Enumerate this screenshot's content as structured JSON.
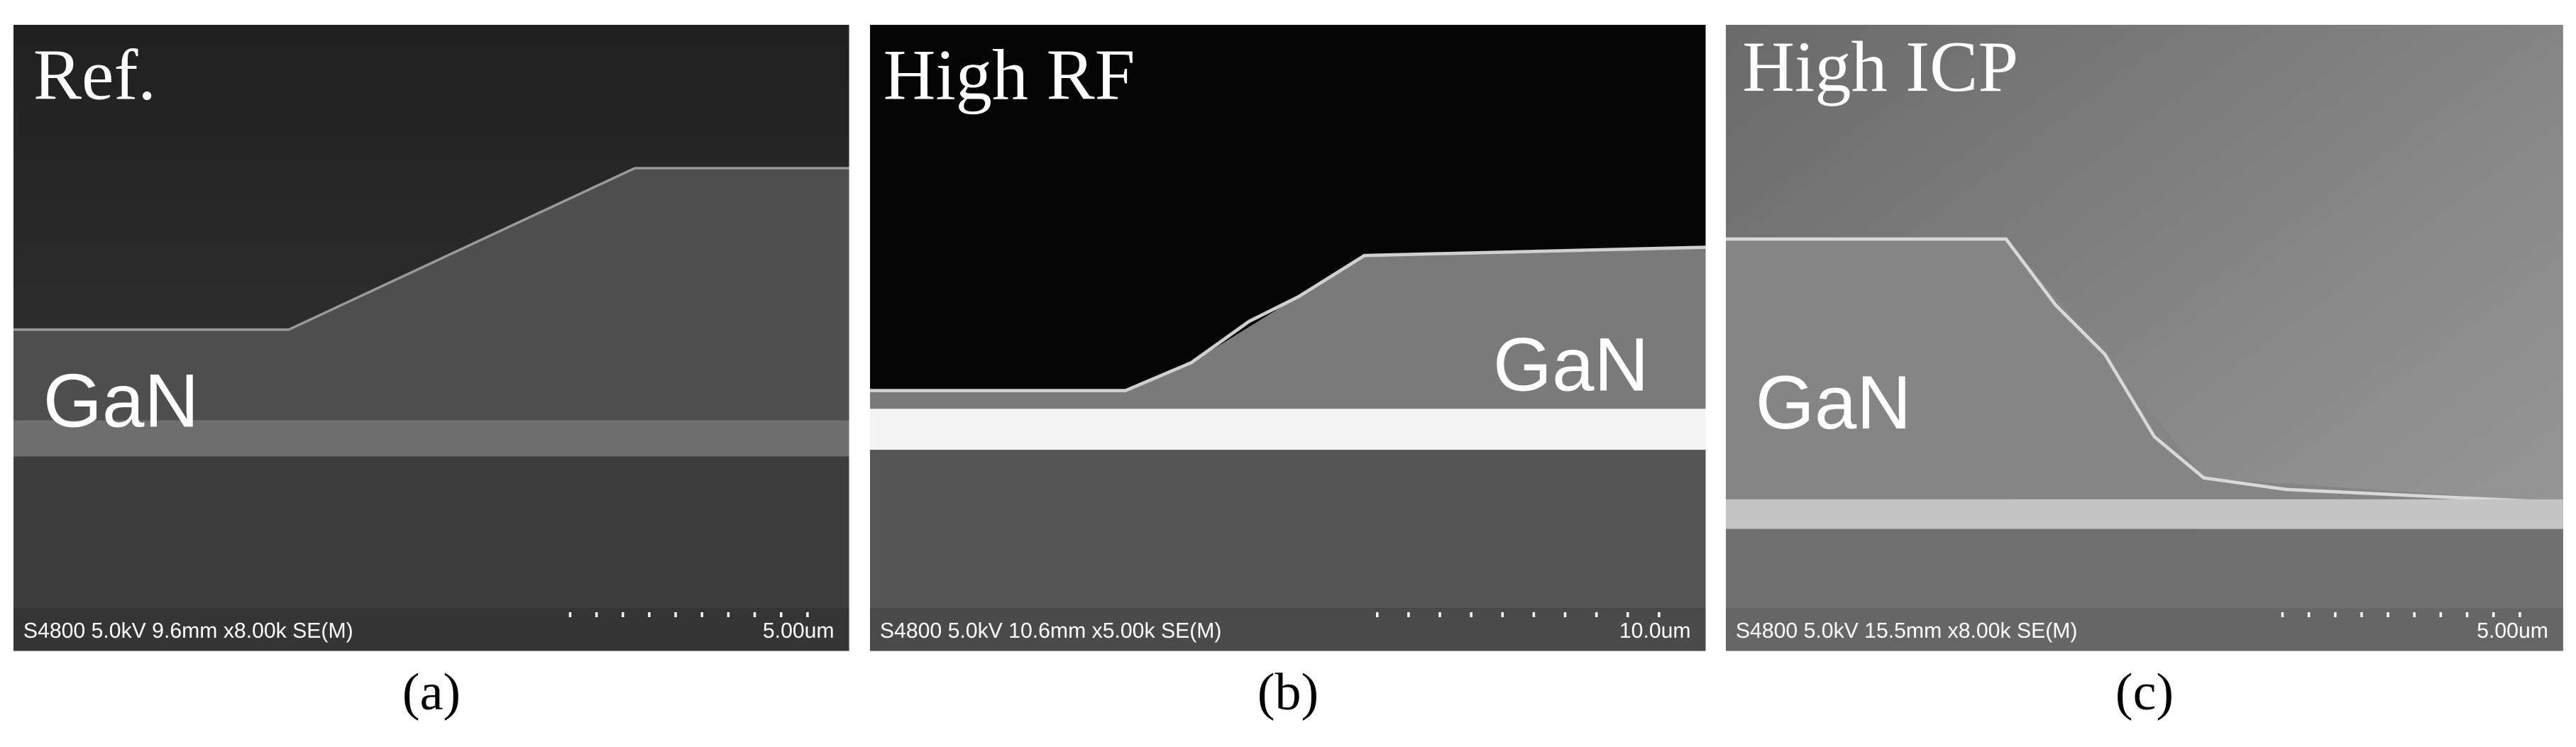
{
  "panels": [
    {
      "label": "Ref.",
      "material": "GaN",
      "info": "S4800 5.0kV 9.6mm x8.00k SE(M)",
      "scale": "5.00um",
      "caption": "(a)"
    },
    {
      "label": "High RF",
      "material": "GaN",
      "info": "S4800 5.0kV 10.6mm x5.00k SE(M)",
      "scale": "10.0um",
      "caption": "(b)"
    },
    {
      "label": "High ICP",
      "material": "GaN",
      "info": "S4800 5.0kV 15.5mm x8.00k SE(M)",
      "scale": "5.00um",
      "caption": "(c)"
    }
  ]
}
